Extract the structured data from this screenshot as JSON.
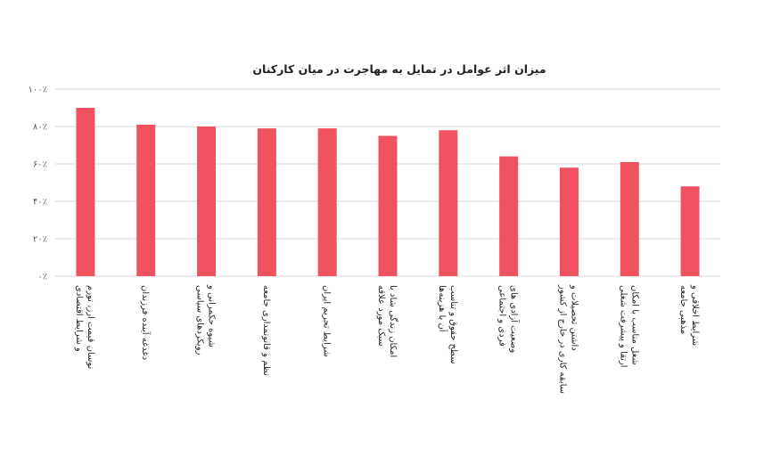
{
  "chart_data": {
    "type": "bar",
    "title": "میزان اثر عوامل در  تمایل به مهاجرت در میان کارکنان",
    "xlabel": "",
    "ylabel": "",
    "ylim": [
      0,
      100
    ],
    "yticks": [
      0,
      20,
      40,
      60,
      80,
      100
    ],
    "ytick_labels": [
      "۰٪",
      "۲۰٪",
      "۴۰٪",
      "۶۰٪",
      "۸۰٪",
      "۱۰۰٪"
    ],
    "grid": true,
    "legend": "none",
    "bar_color": "#f0525f",
    "categories": [
      [
        "نوسان قیمت ارز، تورم",
        "و شرایط اقتصادی"
      ],
      [
        "دغدغه آینده فرزندان"
      ],
      [
        "شیوه حکمرانی و",
        "رویکردهای سیاسی"
      ],
      [
        "نظم و قانونمداری جامعه"
      ],
      [
        "شرایط تحریم ایران"
      ],
      [
        "امکان زندگی شاد با",
        "سبک مورد علاقه"
      ],
      [
        "سطح حقوق و تناسب",
        "آن با هزینه‌ها"
      ],
      [
        "وضعیت آزادی های",
        "فردی و اجتماعی"
      ],
      [
        "داشتن تحصیلات و",
        "سابقه کاری در خارج از کشور"
      ],
      [
        "شغل مناسب با امکان",
        "ارتقا و پیشرفت شغلی"
      ],
      [
        "شرایط اخلاقی و",
        "مذهبی جامعه"
      ]
    ],
    "values": [
      90,
      81,
      80,
      79,
      79,
      75,
      78,
      64,
      58,
      61,
      48
    ]
  }
}
